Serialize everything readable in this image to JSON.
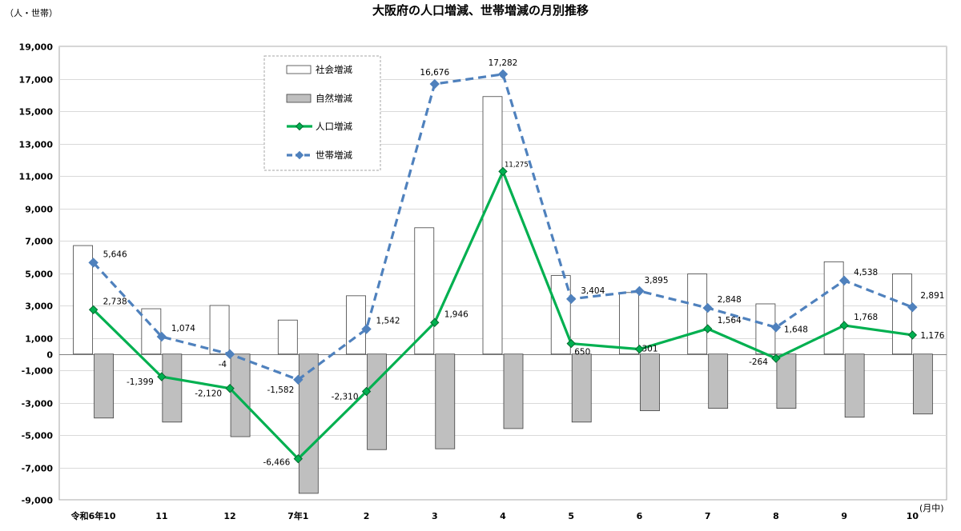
{
  "chart_data": {
    "type": "bar",
    "title": "大阪府の人口増減、世帯増減の月別推移",
    "y_unit_label": "（人・世帯）",
    "x_unit_label": "(月中)",
    "categories": [
      "令和6年10",
      "11",
      "12",
      "7年1",
      "2",
      "3",
      "4",
      "5",
      "6",
      "7",
      "8",
      "9",
      "10"
    ],
    "ylim": [
      -9000,
      19000
    ],
    "y_ticks": [
      19000,
      17000,
      15000,
      13000,
      11000,
      9000,
      7000,
      5000,
      3000,
      1000,
      0,
      -1000,
      -3000,
      -5000,
      -7000,
      -9000
    ],
    "y_tick_labels": [
      "19,000",
      "17,000",
      "15,000",
      "13,000",
      "11,000",
      "9,000",
      "7,000",
      "5,000",
      "3,000",
      "1,000",
      "0",
      "-1,000",
      "-3,000",
      "-5,000",
      "-7,000",
      "-9,000"
    ],
    "grid": true,
    "legend_position": "top-left",
    "series": [
      {
        "name": "社会増減",
        "type": "bar",
        "color": "#ffffff",
        "values": [
          6700,
          2800,
          3000,
          2100,
          3600,
          7800,
          15900,
          4850,
          3800,
          4950,
          3100,
          5700,
          4950
        ]
      },
      {
        "name": "自然増減",
        "type": "bar",
        "color": "#bfbfbf",
        "values": [
          -3950,
          -4200,
          -5100,
          -8600,
          -5900,
          -5850,
          -4600,
          -4200,
          -3500,
          -3350,
          -3350,
          -3900,
          -3700
        ]
      },
      {
        "name": "人口増減",
        "type": "line",
        "color": "#00b050",
        "values": [
          2738,
          -1399,
          -2120,
          -6466,
          -2310,
          1946,
          11275,
          650,
          301,
          1564,
          -264,
          1768,
          1176
        ],
        "labels": [
          "2,738",
          "-1,399",
          "-2,120",
          "-6,466",
          "-2,310",
          "1,946",
          "11,275",
          "650",
          "301",
          "1,564",
          "-264",
          "1,768",
          "1,176"
        ]
      },
      {
        "name": "世帯増減",
        "type": "line",
        "color": "#4f81bd",
        "values": [
          5646,
          1074,
          -4,
          -1582,
          1542,
          16676,
          17282,
          3404,
          3895,
          2848,
          1648,
          4538,
          2891
        ],
        "labels": [
          "5,646",
          "1,074",
          "-4",
          "-1,582",
          "1,542",
          "16,676",
          "17,282",
          "3,404",
          "3,895",
          "2,848",
          "1,648",
          "4,538",
          "2,891"
        ]
      }
    ]
  }
}
